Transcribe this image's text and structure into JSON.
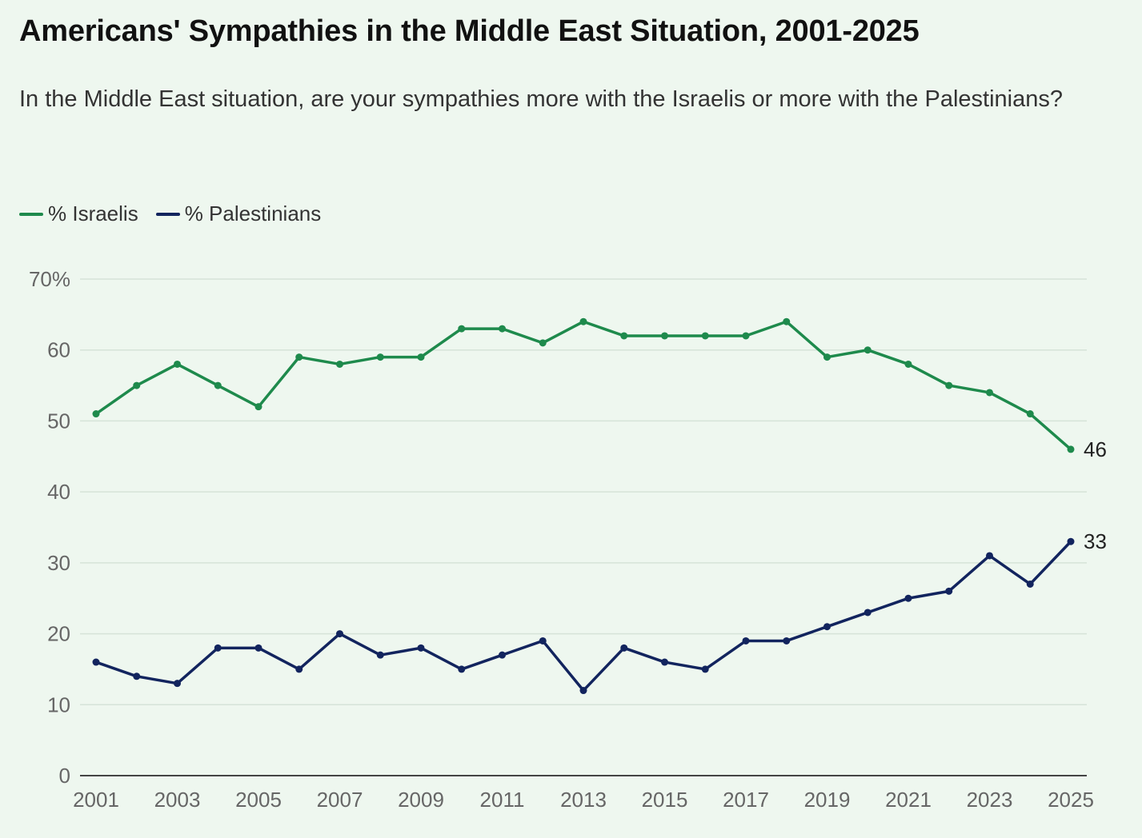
{
  "title": "Americans' Sympathies in the Middle East Situation, 2001-2025",
  "subtitle": "In the Middle East situation, are your sympathies more with the Israelis or more with the Palestinians?",
  "chart_data": {
    "type": "line",
    "x": [
      2001,
      2002,
      2003,
      2004,
      2005,
      2006,
      2007,
      2008,
      2009,
      2010,
      2011,
      2012,
      2013,
      2014,
      2015,
      2016,
      2017,
      2018,
      2019,
      2020,
      2021,
      2022,
      2023,
      2024,
      2025
    ],
    "x_tick_labels": [
      "2001",
      "2003",
      "2005",
      "2007",
      "2009",
      "2011",
      "2013",
      "2015",
      "2017",
      "2019",
      "2021",
      "2023",
      "2025"
    ],
    "y_tick_labels": [
      "0",
      "10",
      "20",
      "30",
      "40",
      "50",
      "60",
      "70%"
    ],
    "ylim": [
      0,
      70
    ],
    "grid": true,
    "legend_position": "top-left",
    "series": [
      {
        "name": "% Israelis",
        "color": "#1e8a4c",
        "values": [
          51,
          55,
          58,
          55,
          52,
          59,
          58,
          59,
          59,
          63,
          63,
          61,
          64,
          62,
          62,
          62,
          62,
          64,
          59,
          60,
          58,
          55,
          54,
          51,
          46
        ],
        "end_label": "46"
      },
      {
        "name": "% Palestinians",
        "color": "#12245e",
        "values": [
          16,
          14,
          13,
          18,
          18,
          15,
          20,
          17,
          18,
          15,
          17,
          19,
          12,
          18,
          16,
          15,
          19,
          19,
          21,
          23,
          25,
          26,
          31,
          27,
          33
        ],
        "end_label": "33"
      }
    ]
  }
}
